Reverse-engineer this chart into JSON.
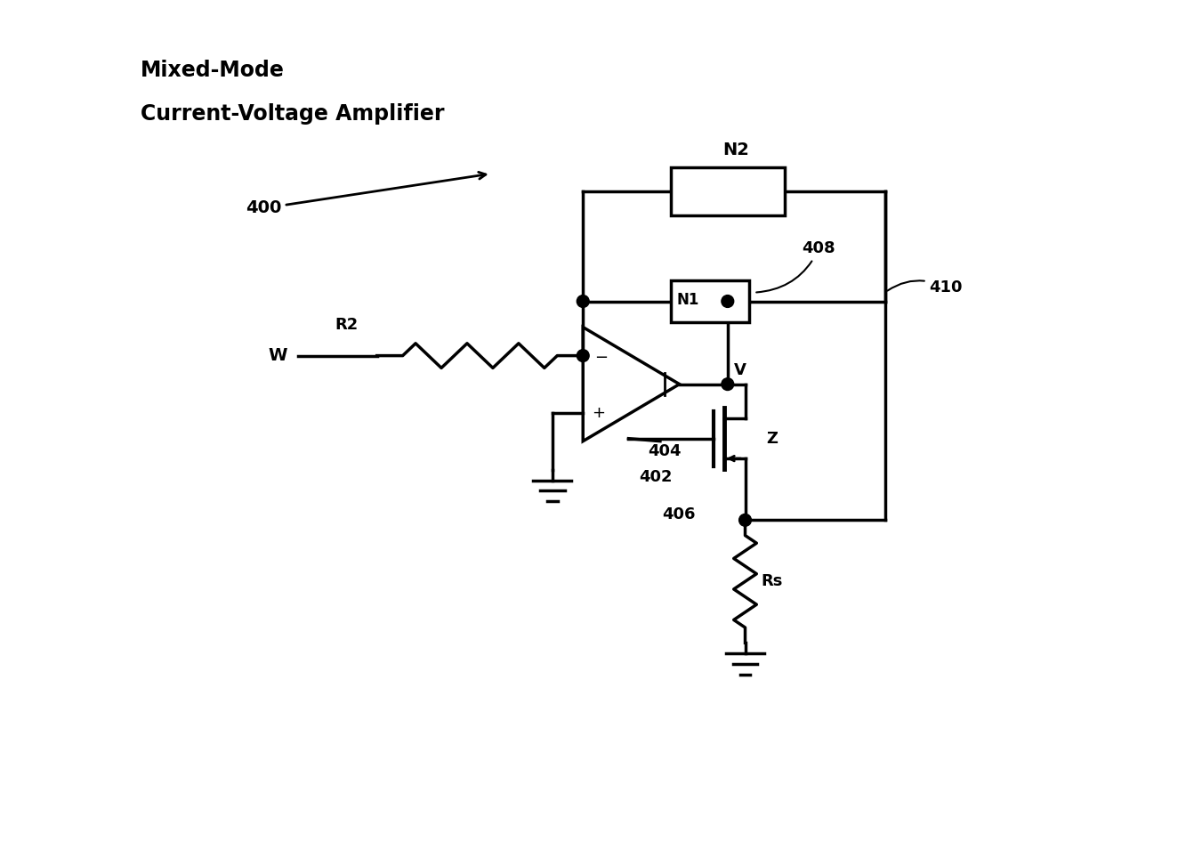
{
  "bg_color": "#ffffff",
  "line_color": "#000000",
  "lw": 2.5,
  "title_line1": "Mixed-Mode",
  "title_line2": "Current-Voltage Amplifier",
  "label_400": "400",
  "label_W": "W",
  "label_R2": "R2",
  "label_N1": "N1",
  "label_N2": "N2",
  "label_408": "408",
  "label_410": "410",
  "label_V": "V",
  "label_Z": "Z",
  "label_402": "402",
  "label_404": "404",
  "label_406": "406",
  "label_Rs": "Rs"
}
